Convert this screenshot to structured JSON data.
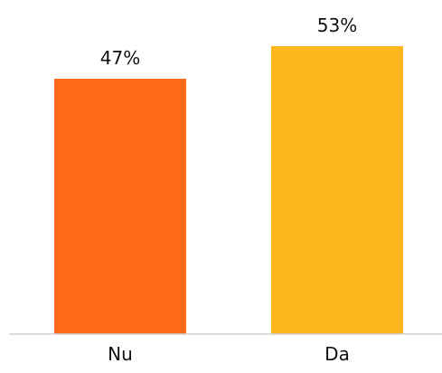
{
  "chart_data": {
    "type": "bar",
    "categories": [
      "Nu",
      "Da"
    ],
    "values": [
      47,
      53
    ],
    "data_labels": [
      "47%",
      "53%"
    ],
    "colors": [
      "#ff6a1a",
      "#fdb71d"
    ],
    "title": "",
    "xlabel": "",
    "ylabel": "",
    "grid": false,
    "legend": "none"
  }
}
